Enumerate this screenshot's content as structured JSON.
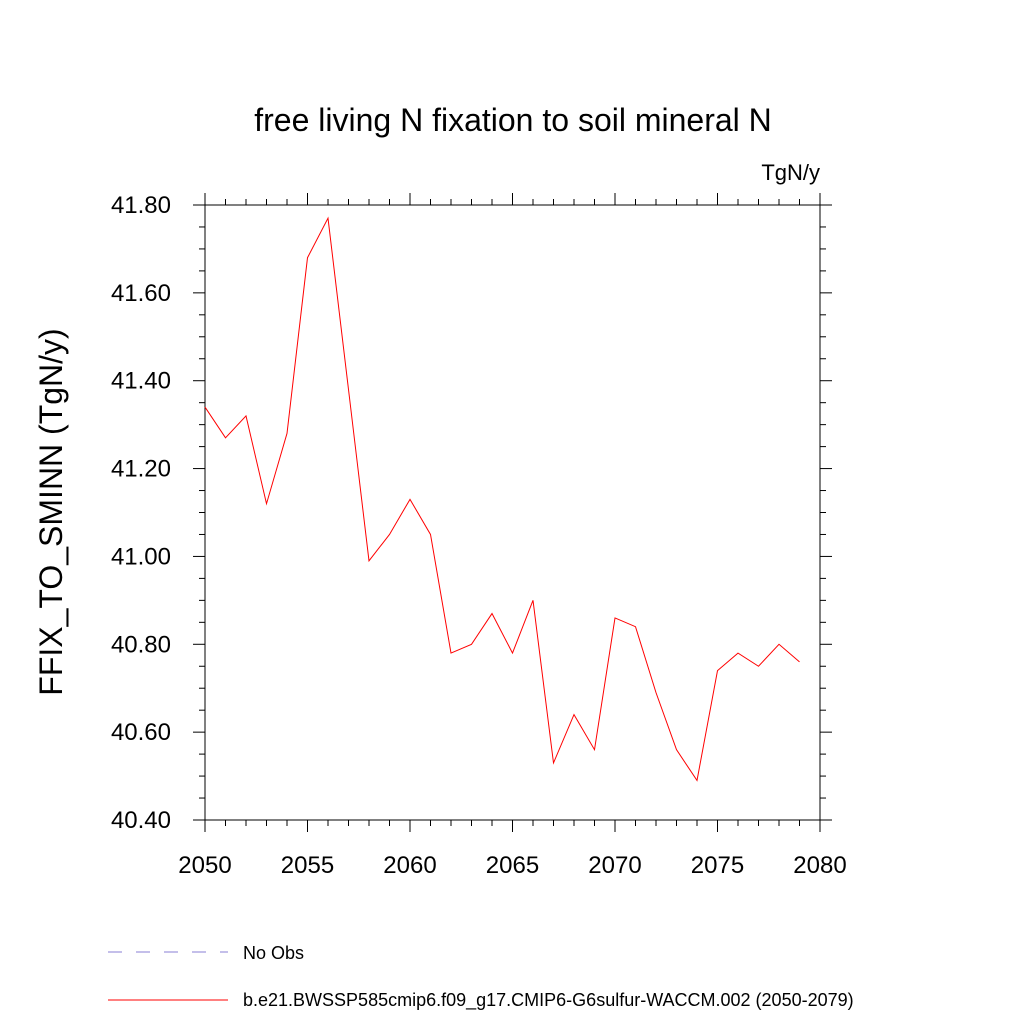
{
  "chart_data": {
    "type": "line",
    "title": "free living N fixation to soil mineral N",
    "units_label": "TgN/y",
    "ylabel": "FFIX_TO_SMINN  (TgN/y)",
    "xlabel": "",
    "xlim": [
      2050,
      2080
    ],
    "ylim": [
      40.4,
      41.8
    ],
    "x_ticks": [
      2050,
      2055,
      2060,
      2065,
      2070,
      2075,
      2080
    ],
    "x_tick_labels": [
      "2050",
      "2055",
      "2060",
      "2065",
      "2070",
      "2075",
      "2080"
    ],
    "y_ticks": [
      40.4,
      40.6,
      40.8,
      41.0,
      41.2,
      41.4,
      41.6,
      41.8
    ],
    "y_tick_labels": [
      "40.40",
      "40.60",
      "40.80",
      "41.00",
      "41.20",
      "41.40",
      "41.60",
      "41.80"
    ],
    "grid": false,
    "legend_position": "bottom-left",
    "series": [
      {
        "name": "b.e21.BWSSP585cmip6.f09_g17.CMIP6-G6sulfur-WACCM.002 (2050-2079)",
        "color": "#ff0000",
        "x": [
          2050,
          2051,
          2052,
          2053,
          2054,
          2055,
          2056,
          2057,
          2058,
          2059,
          2060,
          2061,
          2062,
          2063,
          2064,
          2065,
          2066,
          2067,
          2068,
          2069,
          2070,
          2071,
          2072,
          2073,
          2074,
          2075,
          2076,
          2077,
          2078,
          2079
        ],
        "values": [
          41.34,
          41.27,
          41.32,
          41.12,
          41.28,
          41.68,
          41.77,
          41.38,
          40.99,
          41.05,
          41.13,
          41.05,
          40.78,
          40.8,
          40.87,
          40.78,
          40.9,
          40.53,
          40.64,
          40.56,
          40.86,
          40.84,
          40.69,
          40.56,
          40.49,
          40.74,
          40.78,
          40.75,
          40.8,
          40.76
        ]
      }
    ],
    "legend": [
      {
        "label": "No Obs",
        "color": "#8a7fd6",
        "style": "dashed"
      },
      {
        "label": "b.e21.BWSSP585cmip6.f09_g17.CMIP6-G6sulfur-WACCM.002 (2050-2079)",
        "color": "#ff0000",
        "style": "solid"
      }
    ]
  }
}
